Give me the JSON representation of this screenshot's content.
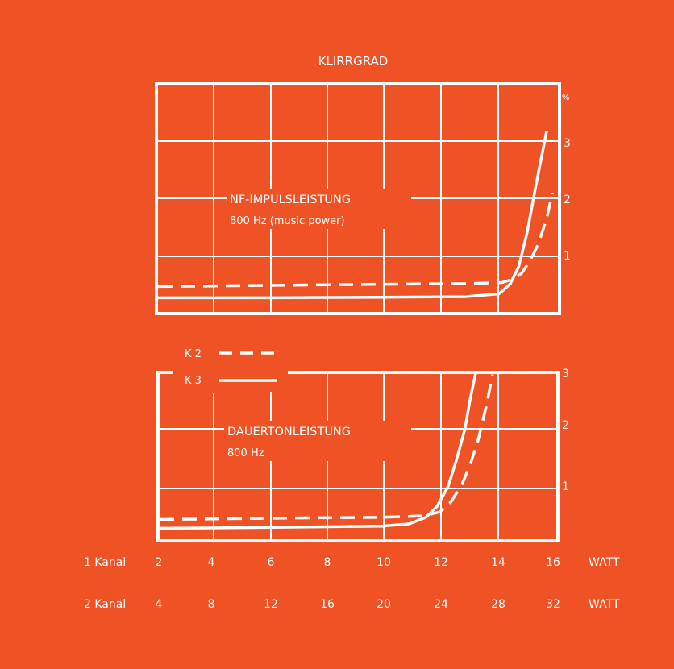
{
  "colors": {
    "background": "#ef5224",
    "ink": "#ffffff"
  },
  "chart_data": [
    {
      "type": "line",
      "title": "KLIRRGRAD",
      "label_line1": "NF-IMPULSLEISTUNG",
      "label_line2": "800 Hz (music power)",
      "y_unit": "%",
      "yticks": [
        "1",
        "2",
        "3"
      ],
      "ylim": [
        -0.2,
        3.8
      ],
      "xlim": [
        2,
        16.3
      ],
      "series": [
        {
          "name": "K 2",
          "style": "dashed",
          "x": [
            2,
            6,
            10,
            13,
            14.3,
            14.7,
            15.0,
            15.3,
            15.6,
            15.9,
            16.1
          ],
          "y": [
            0.25,
            0.27,
            0.29,
            0.3,
            0.32,
            0.38,
            0.48,
            0.7,
            1.0,
            1.45,
            1.9
          ]
        },
        {
          "name": "K 3",
          "style": "solid",
          "x": [
            2,
            6,
            10,
            13,
            14.2,
            14.6,
            14.9,
            15.2,
            15.5,
            15.7,
            15.9
          ],
          "y": [
            0.05,
            0.05,
            0.06,
            0.07,
            0.12,
            0.3,
            0.6,
            1.2,
            2.0,
            2.5,
            3.0
          ]
        }
      ]
    },
    {
      "type": "line",
      "label_line1": "DAUERTONLEISTUNG",
      "label_line2": "800 Hz",
      "yticks": [
        "1",
        "2",
        "3"
      ],
      "ylim": [
        -0.8,
        3.0
      ],
      "xlim": [
        2,
        16.3
      ],
      "series": [
        {
          "name": "K 2",
          "style": "dashed",
          "x": [
            2,
            6,
            10,
            11.5,
            12.1,
            12.5,
            12.9,
            13.2,
            13.5,
            13.8,
            14.0
          ],
          "y": [
            -0.35,
            -0.32,
            -0.3,
            -0.27,
            -0.18,
            0.05,
            0.45,
            0.9,
            1.5,
            2.3,
            2.95
          ]
        },
        {
          "name": "K 3",
          "style": "solid",
          "x": [
            2,
            6,
            10,
            11.0,
            11.6,
            12.0,
            12.4,
            12.7,
            13.0,
            13.2,
            13.4
          ],
          "y": [
            -0.55,
            -0.53,
            -0.5,
            -0.45,
            -0.3,
            -0.05,
            0.4,
            1.0,
            1.7,
            2.4,
            3.0
          ]
        }
      ]
    }
  ],
  "legend": [
    {
      "label": "K 2",
      "style": "dashed"
    },
    {
      "label": "K 3",
      "style": "solid"
    }
  ],
  "axis": {
    "row1": {
      "label": "1 Kanal",
      "ticks": [
        "2",
        "4",
        "6",
        "8",
        "10",
        "12",
        "14",
        "16"
      ],
      "unit": "WATT"
    },
    "row2": {
      "label": "2 Kanal",
      "ticks": [
        "4",
        "8",
        "12",
        "16",
        "20",
        "24",
        "28",
        "32"
      ],
      "unit": "WATT"
    }
  }
}
